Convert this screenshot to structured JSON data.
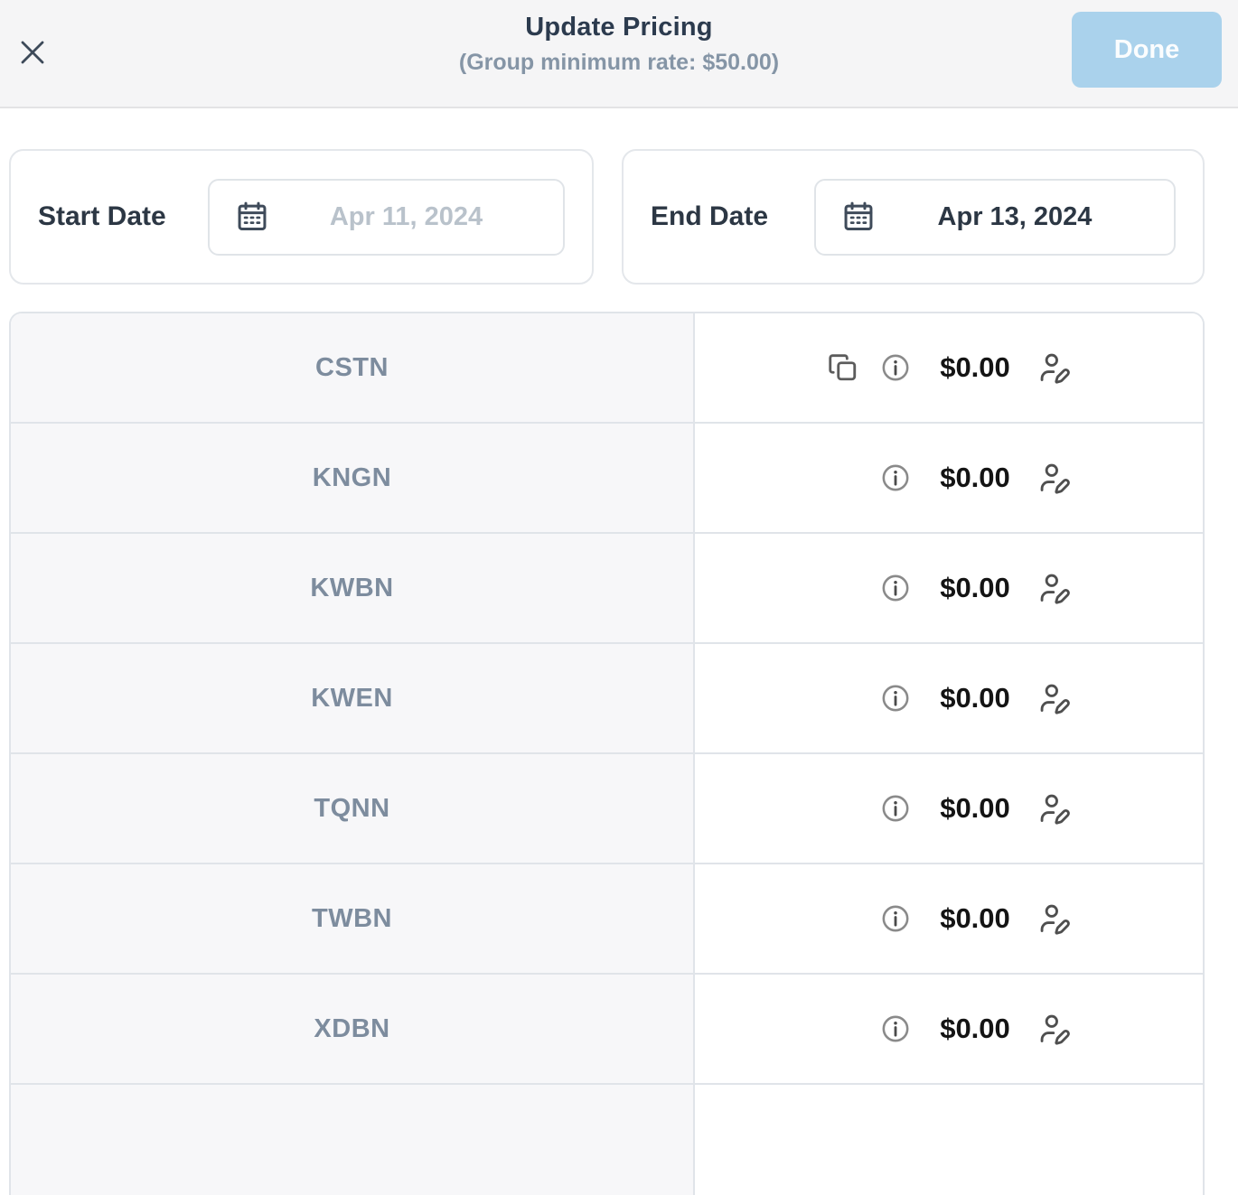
{
  "header": {
    "title": "Update Pricing",
    "subtitle": "(Group minimum rate: $50.00)",
    "done_label": "Done",
    "done_color": "#aad2ec",
    "title_color": "#2c3b4e",
    "subtitle_color": "#8595a6"
  },
  "dates": {
    "start": {
      "label": "Start Date",
      "placeholder": "Apr 11, 2024",
      "value": ""
    },
    "end": {
      "label": "End Date",
      "value": "Apr 13, 2024"
    }
  },
  "icons": {
    "close": "close-icon",
    "calendar": "calendar-icon",
    "copy": "copy-icon",
    "info": "info-icon",
    "edit_user": "user-edit-icon"
  },
  "table": {
    "rows": [
      {
        "code": "CSTN",
        "price": "$0.00",
        "has_copy": true
      },
      {
        "code": "KNGN",
        "price": "$0.00",
        "has_copy": false
      },
      {
        "code": "KWBN",
        "price": "$0.00",
        "has_copy": false
      },
      {
        "code": "KWEN",
        "price": "$0.00",
        "has_copy": false
      },
      {
        "code": "TQNN",
        "price": "$0.00",
        "has_copy": false
      },
      {
        "code": "TWBN",
        "price": "$0.00",
        "has_copy": false
      },
      {
        "code": "XDBN",
        "price": "$0.00",
        "has_copy": false
      }
    ],
    "code_color": "#7d8c9e",
    "price_color": "#141414",
    "left_cell_bg": "#f7f7f9",
    "border_color": "#e0e4e9"
  }
}
